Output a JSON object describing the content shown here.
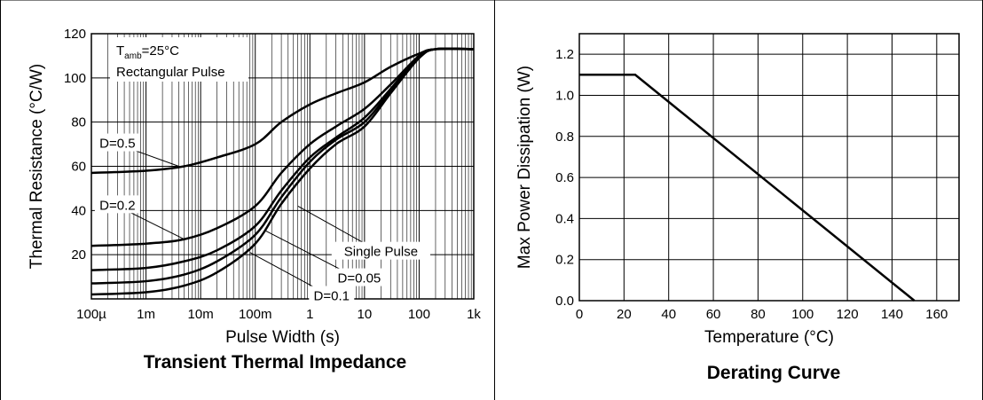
{
  "chart_data": [
    {
      "type": "line",
      "title": "Transient Thermal Impedance",
      "xlabel": "Pulse Width (s)",
      "ylabel": "Thermal Resistance (°C/W)",
      "xscale": "log",
      "xlim": [
        0.0001,
        1000
      ],
      "ylim": [
        0,
        120
      ],
      "xticks": [
        "100µ",
        "1m",
        "10m",
        "100m",
        "1",
        "10",
        "100",
        "1k"
      ],
      "yticks": [
        "20",
        "40",
        "60",
        "80",
        "100",
        "120"
      ],
      "grid": true,
      "annotation_box": {
        "line1": "T",
        "line1_sub": "amb",
        "line1_rest": "=25°C",
        "line2": "Rectangular Pulse"
      },
      "series": [
        {
          "name": "D=0.5",
          "x": [
            0.0001,
            0.001,
            0.005,
            0.02,
            0.1,
            0.3,
            1,
            3,
            10,
            30,
            100,
            200,
            1000
          ],
          "y": [
            57,
            58,
            60,
            64,
            70,
            80,
            88,
            93,
            98,
            105,
            111,
            113,
            113
          ]
        },
        {
          "name": "D=0.2",
          "x": [
            0.0001,
            0.001,
            0.005,
            0.02,
            0.1,
            0.3,
            1,
            3,
            10,
            30,
            100,
            200,
            1000
          ],
          "y": [
            24,
            25,
            27,
            32,
            42,
            57,
            70,
            78,
            86,
            97,
            110,
            113,
            113
          ]
        },
        {
          "name": "D=0.1",
          "x": [
            0.0001,
            0.001,
            0.005,
            0.02,
            0.1,
            0.3,
            1,
            3,
            10,
            30,
            100,
            200,
            1000
          ],
          "y": [
            13,
            14,
            17,
            22,
            33,
            49,
            64,
            73,
            82,
            95,
            110,
            113,
            113
          ]
        },
        {
          "name": "D=0.05",
          "x": [
            0.0001,
            0.001,
            0.005,
            0.02,
            0.1,
            0.3,
            1,
            3,
            10,
            30,
            100,
            200,
            1000
          ],
          "y": [
            7,
            8,
            11,
            17,
            29,
            46,
            62,
            72,
            80,
            94,
            109,
            113,
            113
          ]
        },
        {
          "name": "Single Pulse",
          "x": [
            0.0001,
            0.001,
            0.005,
            0.02,
            0.1,
            0.3,
            1,
            3,
            10,
            30,
            100,
            200,
            1000
          ],
          "y": [
            2,
            3,
            6,
            12,
            25,
            43,
            59,
            70,
            78,
            93,
            109,
            113,
            113
          ]
        }
      ],
      "series_labels": [
        {
          "series": "D=0.5",
          "text": "D=0.5",
          "at": [
            0.0003,
            68
          ],
          "to": [
            0.004,
            60
          ]
        },
        {
          "series": "D=0.2",
          "text": "D=0.2",
          "at": [
            0.0003,
            40
          ],
          "to": [
            0.005,
            27
          ]
        },
        {
          "series": "Single Pulse",
          "text": "Single Pulse",
          "at": [
            20,
            19
          ],
          "to": [
            0.6,
            42
          ]
        },
        {
          "series": "D=0.05",
          "text": "D=0.05",
          "at": [
            8,
            7
          ],
          "to": [
            0.15,
            31
          ]
        },
        {
          "series": "D=0.1",
          "text": "D=0.1",
          "at": [
            2.5,
            -1
          ],
          "to": [
            0.08,
            21
          ]
        }
      ]
    },
    {
      "type": "line",
      "title": "Derating Curve",
      "xlabel": "Temperature (°C)",
      "ylabel": "Max Power Dissipation (W)",
      "xlim": [
        0,
        170
      ],
      "ylim": [
        0,
        1.3
      ],
      "xticks": [
        "0",
        "20",
        "40",
        "60",
        "80",
        "100",
        "120",
        "140",
        "160"
      ],
      "yticks": [
        "0.0",
        "0.2",
        "0.4",
        "0.6",
        "0.8",
        "1.0",
        "1.2"
      ],
      "grid": true,
      "series": [
        {
          "x": [
            0,
            25,
            150
          ],
          "y": [
            1.1,
            1.1,
            0
          ]
        }
      ]
    }
  ]
}
